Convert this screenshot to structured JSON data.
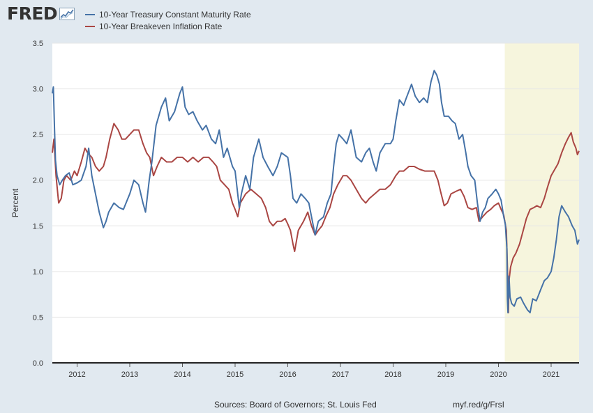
{
  "logo": {
    "text": "FRED"
  },
  "footer": {
    "sources": "Sources: Board of Governors; St. Louis Fed",
    "short_url": "myf.red/g/FrsI"
  },
  "colors": {
    "treasury": "#4572a7",
    "breakeven": "#aa4643",
    "recession": "#f6f5dd",
    "plot_bg": "#ffffff",
    "page_bg": "#e1e9f0",
    "grid": "#e6e6e6"
  },
  "chart_data": {
    "type": "line",
    "ylabel": "Percent",
    "ylim": [
      0,
      3.5
    ],
    "yticks": [
      0.0,
      0.5,
      1.0,
      1.5,
      2.0,
      2.5,
      3.0,
      3.5
    ],
    "ytick_labels": [
      "0.0",
      "0.5",
      "1.0",
      "1.5",
      "2.0",
      "2.5",
      "3.0",
      "3.5"
    ],
    "xlim": [
      2011.53,
      2021.53
    ],
    "xticks": [
      2012,
      2013,
      2014,
      2015,
      2016,
      2017,
      2018,
      2019,
      2020,
      2021
    ],
    "xtick_labels": [
      "2012",
      "2013",
      "2014",
      "2015",
      "2016",
      "2017",
      "2018",
      "2019",
      "2020",
      "2021"
    ],
    "grid": true,
    "legend_position": "top-left",
    "recession_shading": [
      {
        "start": 2020.12,
        "end": 2021.53
      }
    ],
    "series": [
      {
        "name": "10-Year Treasury Constant Maturity Rate",
        "color": "#4572a7",
        "points": [
          [
            2011.53,
            2.95
          ],
          [
            2011.55,
            3.02
          ],
          [
            2011.57,
            2.6
          ],
          [
            2011.59,
            2.22
          ],
          [
            2011.62,
            2.05
          ],
          [
            2011.67,
            1.95
          ],
          [
            2011.72,
            2.0
          ],
          [
            2011.78,
            2.05
          ],
          [
            2011.85,
            2.08
          ],
          [
            2011.92,
            1.95
          ],
          [
            2012.0,
            1.97
          ],
          [
            2012.08,
            2.0
          ],
          [
            2012.17,
            2.15
          ],
          [
            2012.22,
            2.35
          ],
          [
            2012.28,
            2.05
          ],
          [
            2012.35,
            1.85
          ],
          [
            2012.42,
            1.65
          ],
          [
            2012.5,
            1.48
          ],
          [
            2012.55,
            1.55
          ],
          [
            2012.6,
            1.65
          ],
          [
            2012.7,
            1.75
          ],
          [
            2012.8,
            1.7
          ],
          [
            2012.88,
            1.68
          ],
          [
            2012.95,
            1.78
          ],
          [
            2013.0,
            1.85
          ],
          [
            2013.08,
            2.0
          ],
          [
            2013.17,
            1.95
          ],
          [
            2013.25,
            1.75
          ],
          [
            2013.3,
            1.65
          ],
          [
            2013.37,
            2.0
          ],
          [
            2013.42,
            2.2
          ],
          [
            2013.5,
            2.6
          ],
          [
            2013.6,
            2.8
          ],
          [
            2013.68,
            2.9
          ],
          [
            2013.75,
            2.65
          ],
          [
            2013.85,
            2.75
          ],
          [
            2013.95,
            2.95
          ],
          [
            2014.0,
            3.02
          ],
          [
            2014.05,
            2.8
          ],
          [
            2014.12,
            2.72
          ],
          [
            2014.2,
            2.75
          ],
          [
            2014.28,
            2.65
          ],
          [
            2014.38,
            2.55
          ],
          [
            2014.45,
            2.6
          ],
          [
            2014.55,
            2.45
          ],
          [
            2014.63,
            2.4
          ],
          [
            2014.7,
            2.55
          ],
          [
            2014.78,
            2.25
          ],
          [
            2014.85,
            2.35
          ],
          [
            2014.95,
            2.15
          ],
          [
            2015.0,
            2.1
          ],
          [
            2015.08,
            1.7
          ],
          [
            2015.12,
            1.85
          ],
          [
            2015.2,
            2.05
          ],
          [
            2015.28,
            1.9
          ],
          [
            2015.35,
            2.25
          ],
          [
            2015.45,
            2.45
          ],
          [
            2015.53,
            2.25
          ],
          [
            2015.62,
            2.15
          ],
          [
            2015.72,
            2.05
          ],
          [
            2015.8,
            2.15
          ],
          [
            2015.88,
            2.3
          ],
          [
            2016.0,
            2.25
          ],
          [
            2016.05,
            2.05
          ],
          [
            2016.1,
            1.8
          ],
          [
            2016.17,
            1.75
          ],
          [
            2016.25,
            1.85
          ],
          [
            2016.33,
            1.8
          ],
          [
            2016.4,
            1.75
          ],
          [
            2016.45,
            1.6
          ],
          [
            2016.52,
            1.4
          ],
          [
            2016.58,
            1.55
          ],
          [
            2016.68,
            1.6
          ],
          [
            2016.75,
            1.75
          ],
          [
            2016.82,
            1.85
          ],
          [
            2016.87,
            2.15
          ],
          [
            2016.92,
            2.4
          ],
          [
            2016.97,
            2.5
          ],
          [
            2017.05,
            2.45
          ],
          [
            2017.12,
            2.4
          ],
          [
            2017.2,
            2.55
          ],
          [
            2017.3,
            2.25
          ],
          [
            2017.4,
            2.2
          ],
          [
            2017.48,
            2.3
          ],
          [
            2017.55,
            2.35
          ],
          [
            2017.62,
            2.2
          ],
          [
            2017.68,
            2.1
          ],
          [
            2017.75,
            2.3
          ],
          [
            2017.85,
            2.4
          ],
          [
            2017.95,
            2.4
          ],
          [
            2018.0,
            2.45
          ],
          [
            2018.05,
            2.65
          ],
          [
            2018.12,
            2.88
          ],
          [
            2018.2,
            2.82
          ],
          [
            2018.25,
            2.9
          ],
          [
            2018.35,
            3.05
          ],
          [
            2018.42,
            2.92
          ],
          [
            2018.5,
            2.85
          ],
          [
            2018.58,
            2.9
          ],
          [
            2018.65,
            2.85
          ],
          [
            2018.72,
            3.08
          ],
          [
            2018.78,
            3.2
          ],
          [
            2018.83,
            3.15
          ],
          [
            2018.88,
            3.05
          ],
          [
            2018.92,
            2.85
          ],
          [
            2018.97,
            2.7
          ],
          [
            2019.05,
            2.7
          ],
          [
            2019.12,
            2.65
          ],
          [
            2019.18,
            2.62
          ],
          [
            2019.25,
            2.45
          ],
          [
            2019.32,
            2.5
          ],
          [
            2019.38,
            2.3
          ],
          [
            2019.42,
            2.15
          ],
          [
            2019.48,
            2.05
          ],
          [
            2019.55,
            2.0
          ],
          [
            2019.6,
            1.75
          ],
          [
            2019.65,
            1.55
          ],
          [
            2019.7,
            1.65
          ],
          [
            2019.75,
            1.7
          ],
          [
            2019.8,
            1.8
          ],
          [
            2019.88,
            1.85
          ],
          [
            2019.95,
            1.9
          ],
          [
            2020.0,
            1.85
          ],
          [
            2020.05,
            1.78
          ],
          [
            2020.1,
            1.6
          ],
          [
            2020.13,
            1.52
          ],
          [
            2020.16,
            1.25
          ],
          [
            2020.17,
            0.7
          ],
          [
            2020.18,
            0.55
          ],
          [
            2020.2,
            0.95
          ],
          [
            2020.22,
            0.72
          ],
          [
            2020.25,
            0.65
          ],
          [
            2020.3,
            0.62
          ],
          [
            2020.35,
            0.7
          ],
          [
            2020.42,
            0.72
          ],
          [
            2020.48,
            0.65
          ],
          [
            2020.55,
            0.58
          ],
          [
            2020.6,
            0.55
          ],
          [
            2020.65,
            0.7
          ],
          [
            2020.72,
            0.68
          ],
          [
            2020.8,
            0.8
          ],
          [
            2020.87,
            0.9
          ],
          [
            2020.93,
            0.93
          ],
          [
            2021.0,
            1.0
          ],
          [
            2021.05,
            1.15
          ],
          [
            2021.1,
            1.35
          ],
          [
            2021.15,
            1.6
          ],
          [
            2021.2,
            1.72
          ],
          [
            2021.27,
            1.65
          ],
          [
            2021.33,
            1.6
          ],
          [
            2021.4,
            1.5
          ],
          [
            2021.45,
            1.45
          ],
          [
            2021.5,
            1.3
          ],
          [
            2021.53,
            1.35
          ]
        ]
      },
      {
        "name": "10-Year Breakeven Inflation Rate",
        "color": "#aa4643",
        "points": [
          [
            2011.53,
            2.3
          ],
          [
            2011.56,
            2.45
          ],
          [
            2011.6,
            2.05
          ],
          [
            2011.65,
            1.75
          ],
          [
            2011.7,
            1.8
          ],
          [
            2011.75,
            2.0
          ],
          [
            2011.8,
            2.05
          ],
          [
            2011.88,
            2.0
          ],
          [
            2011.95,
            2.1
          ],
          [
            2012.0,
            2.05
          ],
          [
            2012.08,
            2.2
          ],
          [
            2012.15,
            2.35
          ],
          [
            2012.2,
            2.3
          ],
          [
            2012.28,
            2.25
          ],
          [
            2012.35,
            2.15
          ],
          [
            2012.42,
            2.1
          ],
          [
            2012.5,
            2.15
          ],
          [
            2012.55,
            2.25
          ],
          [
            2012.62,
            2.45
          ],
          [
            2012.7,
            2.62
          ],
          [
            2012.78,
            2.55
          ],
          [
            2012.85,
            2.45
          ],
          [
            2012.92,
            2.45
          ],
          [
            2013.0,
            2.5
          ],
          [
            2013.08,
            2.55
          ],
          [
            2013.17,
            2.55
          ],
          [
            2013.25,
            2.4
          ],
          [
            2013.32,
            2.3
          ],
          [
            2013.38,
            2.25
          ],
          [
            2013.45,
            2.05
          ],
          [
            2013.52,
            2.15
          ],
          [
            2013.6,
            2.25
          ],
          [
            2013.7,
            2.2
          ],
          [
            2013.8,
            2.2
          ],
          [
            2013.9,
            2.25
          ],
          [
            2014.0,
            2.25
          ],
          [
            2014.1,
            2.2
          ],
          [
            2014.2,
            2.25
          ],
          [
            2014.3,
            2.2
          ],
          [
            2014.4,
            2.25
          ],
          [
            2014.5,
            2.25
          ],
          [
            2014.58,
            2.2
          ],
          [
            2014.65,
            2.15
          ],
          [
            2014.72,
            2.0
          ],
          [
            2014.8,
            1.95
          ],
          [
            2014.88,
            1.9
          ],
          [
            2014.95,
            1.75
          ],
          [
            2015.0,
            1.68
          ],
          [
            2015.05,
            1.6
          ],
          [
            2015.1,
            1.75
          ],
          [
            2015.2,
            1.85
          ],
          [
            2015.3,
            1.9
          ],
          [
            2015.4,
            1.85
          ],
          [
            2015.5,
            1.8
          ],
          [
            2015.58,
            1.7
          ],
          [
            2015.65,
            1.55
          ],
          [
            2015.72,
            1.5
          ],
          [
            2015.8,
            1.55
          ],
          [
            2015.88,
            1.55
          ],
          [
            2015.95,
            1.58
          ],
          [
            2016.0,
            1.52
          ],
          [
            2016.05,
            1.45
          ],
          [
            2016.1,
            1.3
          ],
          [
            2016.13,
            1.22
          ],
          [
            2016.2,
            1.45
          ],
          [
            2016.3,
            1.55
          ],
          [
            2016.38,
            1.65
          ],
          [
            2016.45,
            1.5
          ],
          [
            2016.52,
            1.4
          ],
          [
            2016.58,
            1.45
          ],
          [
            2016.65,
            1.5
          ],
          [
            2016.72,
            1.6
          ],
          [
            2016.8,
            1.7
          ],
          [
            2016.87,
            1.85
          ],
          [
            2016.95,
            1.95
          ],
          [
            2017.05,
            2.05
          ],
          [
            2017.12,
            2.05
          ],
          [
            2017.2,
            2.0
          ],
          [
            2017.3,
            1.9
          ],
          [
            2017.4,
            1.8
          ],
          [
            2017.48,
            1.75
          ],
          [
            2017.55,
            1.8
          ],
          [
            2017.65,
            1.85
          ],
          [
            2017.75,
            1.9
          ],
          [
            2017.85,
            1.9
          ],
          [
            2017.95,
            1.95
          ],
          [
            2018.05,
            2.05
          ],
          [
            2018.12,
            2.1
          ],
          [
            2018.2,
            2.1
          ],
          [
            2018.3,
            2.15
          ],
          [
            2018.4,
            2.15
          ],
          [
            2018.5,
            2.12
          ],
          [
            2018.6,
            2.1
          ],
          [
            2018.7,
            2.1
          ],
          [
            2018.78,
            2.1
          ],
          [
            2018.85,
            2.0
          ],
          [
            2018.9,
            1.88
          ],
          [
            2018.97,
            1.72
          ],
          [
            2019.03,
            1.75
          ],
          [
            2019.1,
            1.85
          ],
          [
            2019.2,
            1.88
          ],
          [
            2019.28,
            1.9
          ],
          [
            2019.35,
            1.82
          ],
          [
            2019.42,
            1.7
          ],
          [
            2019.5,
            1.68
          ],
          [
            2019.58,
            1.7
          ],
          [
            2019.63,
            1.55
          ],
          [
            2019.7,
            1.6
          ],
          [
            2019.78,
            1.65
          ],
          [
            2019.85,
            1.68
          ],
          [
            2019.92,
            1.72
          ],
          [
            2020.0,
            1.75
          ],
          [
            2020.05,
            1.68
          ],
          [
            2020.1,
            1.62
          ],
          [
            2020.15,
            1.45
          ],
          [
            2020.17,
            1.05
          ],
          [
            2020.19,
            0.55
          ],
          [
            2020.2,
            0.9
          ],
          [
            2020.23,
            1.05
          ],
          [
            2020.28,
            1.15
          ],
          [
            2020.33,
            1.2
          ],
          [
            2020.4,
            1.3
          ],
          [
            2020.47,
            1.45
          ],
          [
            2020.53,
            1.58
          ],
          [
            2020.6,
            1.68
          ],
          [
            2020.67,
            1.7
          ],
          [
            2020.73,
            1.72
          ],
          [
            2020.8,
            1.7
          ],
          [
            2020.87,
            1.8
          ],
          [
            2020.93,
            1.92
          ],
          [
            2021.0,
            2.05
          ],
          [
            2021.07,
            2.12
          ],
          [
            2021.13,
            2.18
          ],
          [
            2021.2,
            2.3
          ],
          [
            2021.27,
            2.4
          ],
          [
            2021.33,
            2.47
          ],
          [
            2021.38,
            2.52
          ],
          [
            2021.42,
            2.42
          ],
          [
            2021.47,
            2.35
          ],
          [
            2021.5,
            2.28
          ],
          [
            2021.53,
            2.32
          ]
        ]
      }
    ]
  }
}
